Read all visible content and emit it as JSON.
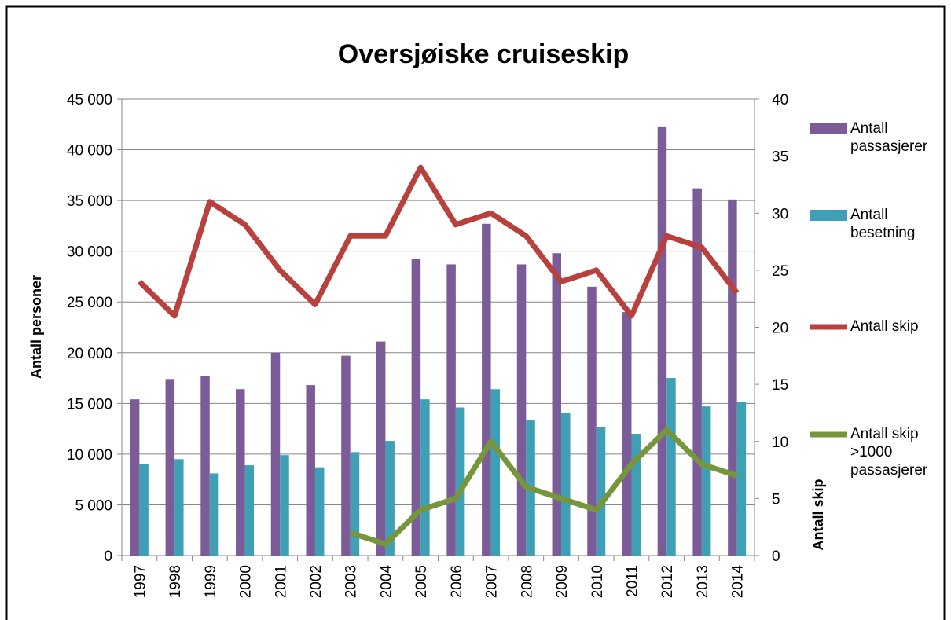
{
  "chart_data": {
    "type": "bar-line",
    "title": "Oversjøiske cruiseskip",
    "y_label": "Antall personer",
    "y2_label": "Antall skip",
    "categories": [
      "1997",
      "1998",
      "1999",
      "2000",
      "2001",
      "2002",
      "2003",
      "2004",
      "2005",
      "2006",
      "2007",
      "2008",
      "2009",
      "2010",
      "2011",
      "2012",
      "2013",
      "2014"
    ],
    "series": [
      {
        "name": "Antall passasjerer",
        "type": "bar",
        "color": "#7b5c99",
        "values": [
          15400,
          17400,
          17700,
          16400,
          20000,
          16800,
          19700,
          21100,
          29200,
          28700,
          32700,
          28700,
          29800,
          26500,
          24000,
          42300,
          36200,
          35100
        ]
      },
      {
        "name": "Antall besetning",
        "type": "bar",
        "color": "#3fa0b5",
        "values": [
          9000,
          9500,
          8100,
          8900,
          9900,
          8700,
          10200,
          11300,
          15400,
          14600,
          16400,
          13400,
          14100,
          12700,
          12000,
          17500,
          14700,
          15100
        ]
      },
      {
        "name": "Antall skip",
        "type": "line",
        "axis": "y2",
        "color": "#b8403d",
        "values": [
          24,
          21,
          31,
          29,
          25,
          22,
          28,
          28,
          34,
          29,
          30,
          28,
          24,
          25,
          21,
          28,
          27,
          23
        ]
      },
      {
        "name": "Antall skip >1000 passasjerer",
        "type": "line",
        "axis": "y2",
        "color": "#77963c",
        "values": [
          null,
          null,
          null,
          null,
          null,
          null,
          2,
          1,
          4,
          5,
          10,
          6,
          5,
          4,
          8,
          11,
          8,
          7
        ]
      }
    ],
    "ylim": [
      0,
      45000
    ],
    "yticks": [
      0,
      {
        "value": 5000,
        "label": "5 000"
      },
      {
        "value": 10000,
        "label": "10 000"
      },
      {
        "value": 15000,
        "label": "15 000"
      },
      {
        "value": 20000,
        "label": "20 000"
      },
      {
        "value": 25000,
        "label": "25 000"
      },
      {
        "value": 30000,
        "label": "30 000"
      },
      {
        "value": 35000,
        "label": "35 000"
      },
      {
        "value": 40000,
        "label": "40 000"
      },
      {
        "value": 45000,
        "label": "45 000"
      }
    ],
    "y2lim": [
      0,
      40
    ],
    "y2ticks": [
      0,
      5,
      10,
      15,
      20,
      25,
      30,
      35,
      40
    ],
    "grid": true,
    "legend": "right"
  }
}
